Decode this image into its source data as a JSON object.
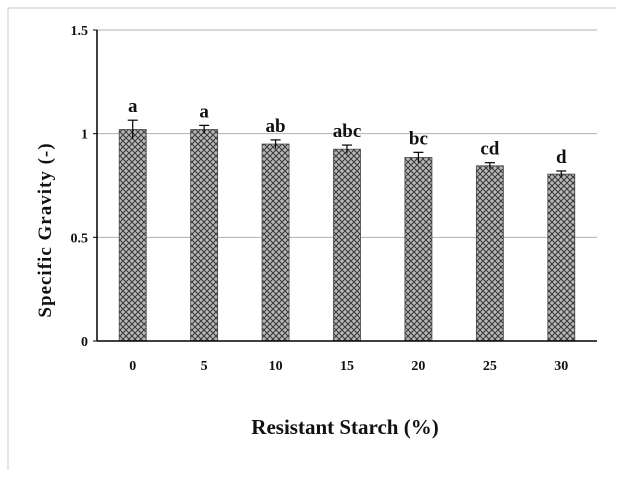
{
  "chart_data": {
    "type": "bar",
    "title": "",
    "xlabel": "Resistant Starch (%)",
    "ylabel": "Specific Gravity (-)",
    "ylim": [
      0,
      1.5
    ],
    "yticks": [
      "0",
      "0.5",
      "1",
      "1.5"
    ],
    "grid": true,
    "bar_pattern": "crosshatch",
    "categories": [
      "0",
      "5",
      "10",
      "15",
      "20",
      "25",
      "30"
    ],
    "values": [
      1.02,
      1.02,
      0.95,
      0.925,
      0.885,
      0.845,
      0.805
    ],
    "errors": [
      0.045,
      0.02,
      0.02,
      0.02,
      0.025,
      0.015,
      0.015
    ],
    "significance_labels": [
      "a",
      "a",
      "ab",
      "abc",
      "bc",
      "cd",
      "d"
    ],
    "colors": {
      "bar_fill": "#b8b8b8",
      "bar_pattern": "#3a3a3a",
      "grid": "#b0b0b0",
      "axis": "#000000"
    }
  }
}
